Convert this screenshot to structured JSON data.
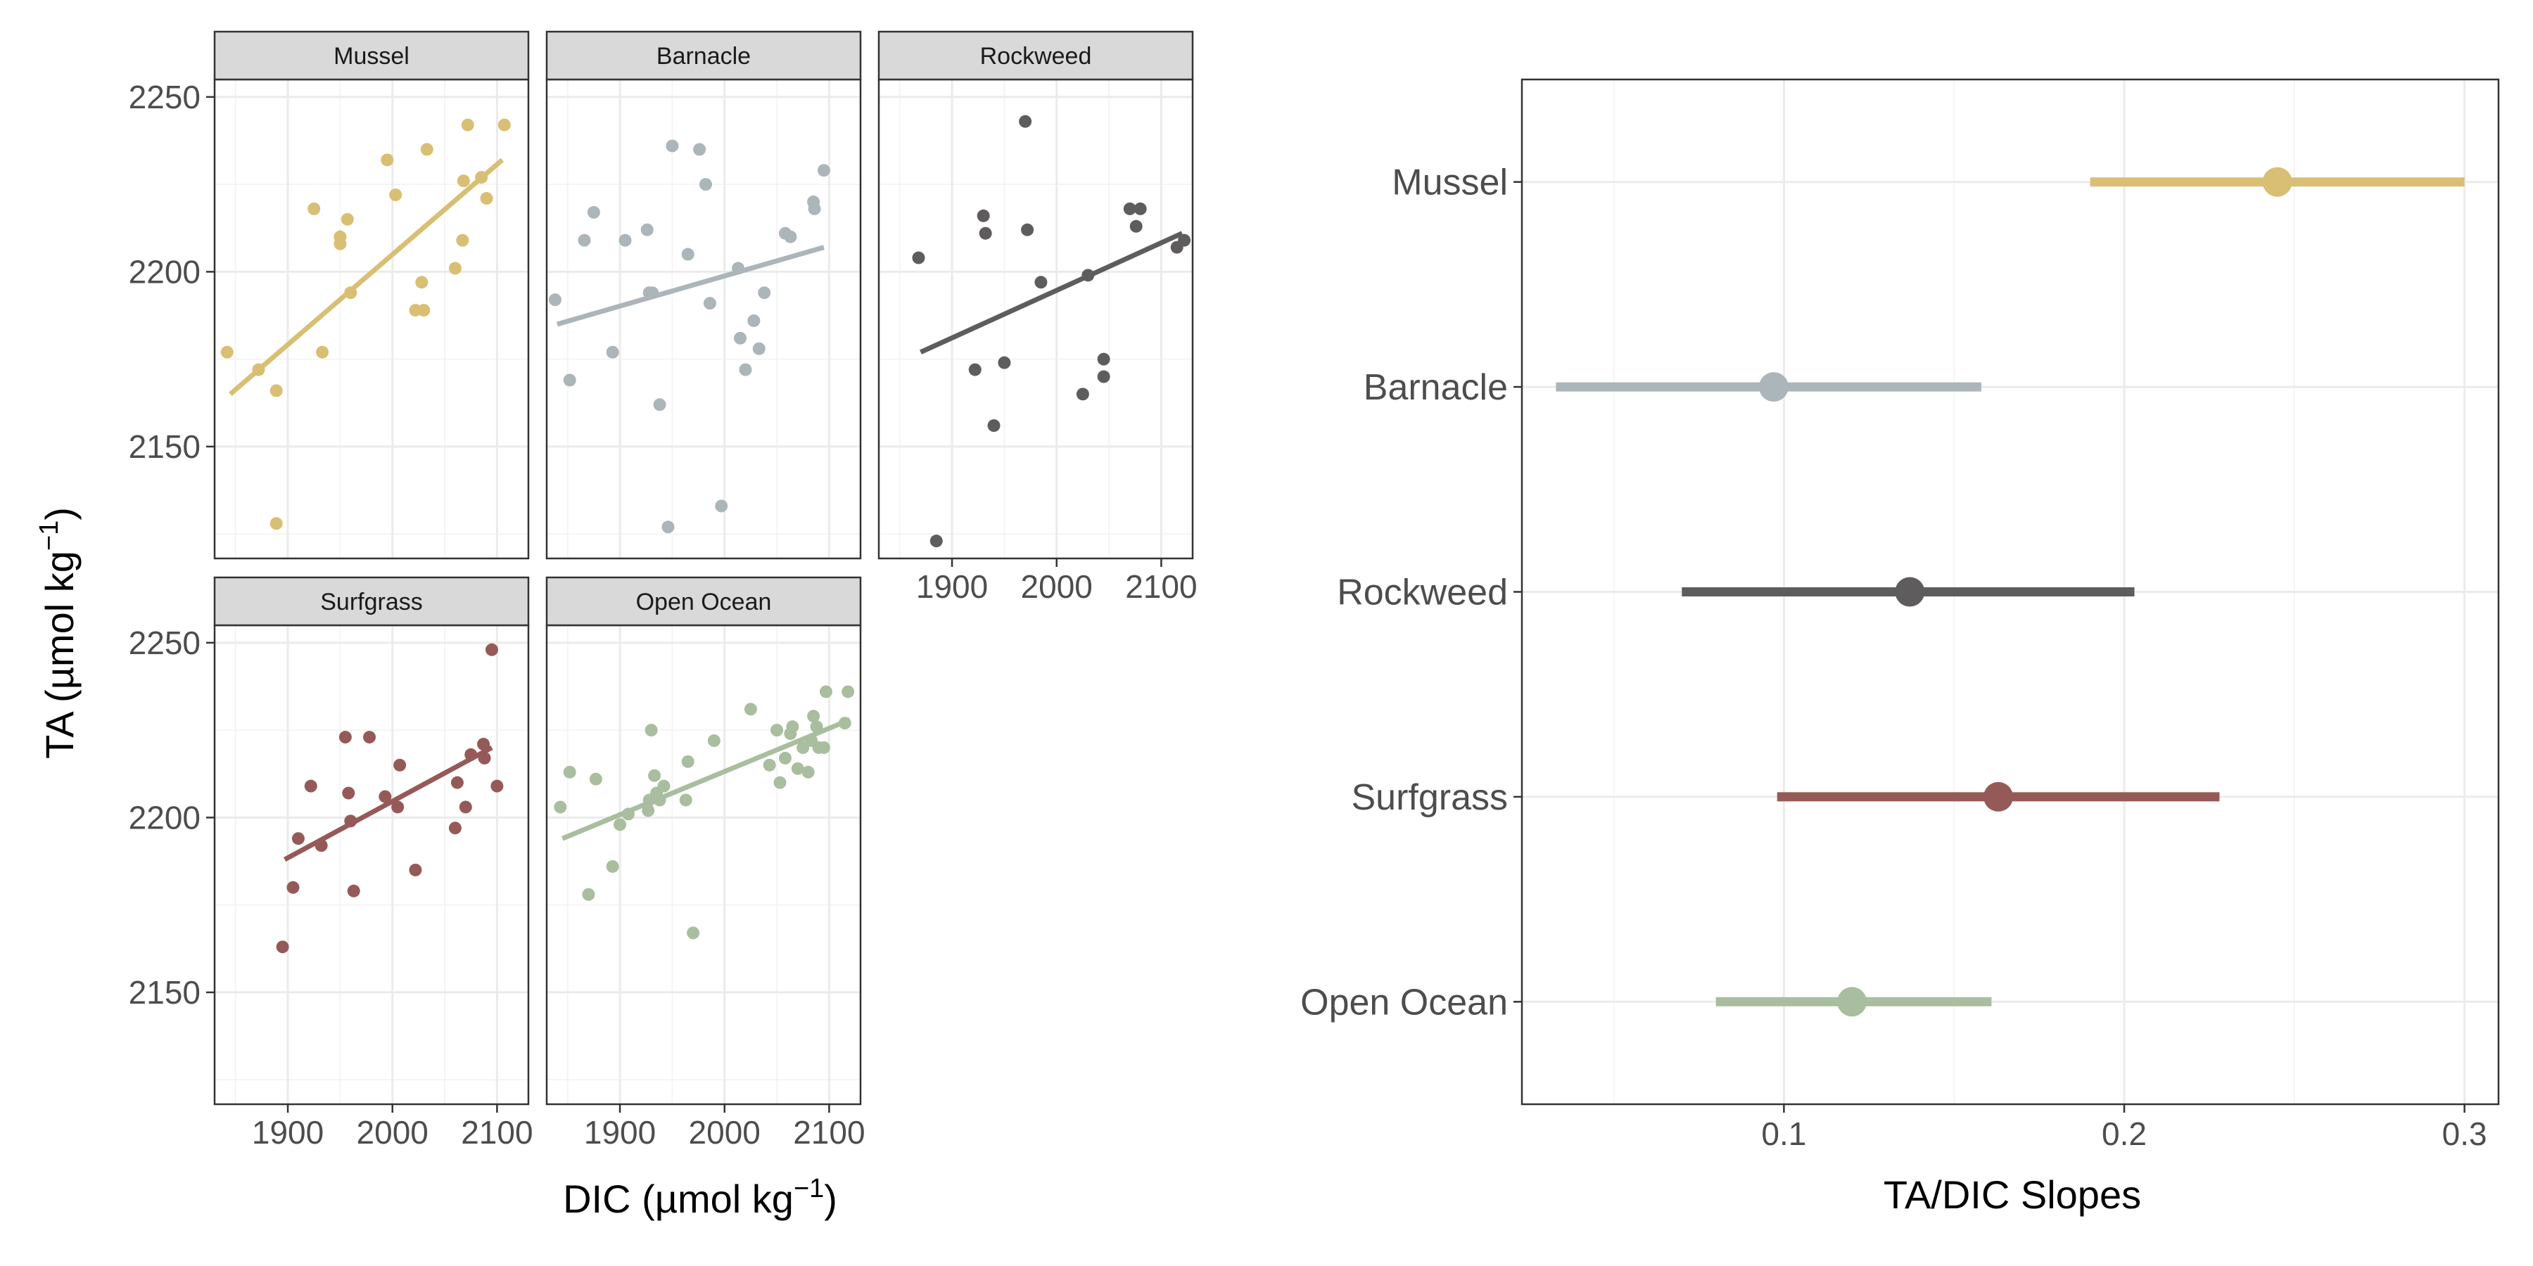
{
  "colors": {
    "Mussel": "#D9BF73",
    "Barnacle": "#ABB5BA",
    "Rockweed": "#5F5C5D",
    "Surfgrass": "#955A58",
    "Open Ocean": "#A9BE9F"
  },
  "chart_data": [
    {
      "type": "scatter",
      "layout": "facet-grid",
      "xlabel_main": "DIC (µmol kg",
      "xlabel_sup": "−1",
      "xlabel_close": ")",
      "ylabel_main": "TA (µmol kg",
      "ylabel_sup": "−1",
      "ylabel_close": ")",
      "xlim": [
        1830,
        2130
      ],
      "ylim": [
        2118,
        2255
      ],
      "x_ticks": [
        1900,
        2000,
        2100
      ],
      "y_ticks": [
        2150,
        2200,
        2250
      ],
      "grid": true,
      "facets": [
        {
          "name": "Mussel",
          "fit": [
            [
              1845,
              2165
            ],
            [
              2105,
              2232
            ]
          ],
          "points": [
            [
              1842,
              2177
            ],
            [
              1872,
              2172
            ],
            [
              1889,
              2166
            ],
            [
              1889,
              2128
            ],
            [
              1925,
              2218
            ],
            [
              1933,
              2177
            ],
            [
              1950,
              2210
            ],
            [
              1950,
              2208
            ],
            [
              1957,
              2215
            ],
            [
              1960,
              2194
            ],
            [
              1995,
              2232
            ],
            [
              2003,
              2222
            ],
            [
              2022,
              2189
            ],
            [
              2028,
              2197
            ],
            [
              2030,
              2189
            ],
            [
              2033,
              2235
            ],
            [
              2060,
              2201
            ],
            [
              2067,
              2209
            ],
            [
              2068,
              2226
            ],
            [
              2072,
              2242
            ],
            [
              2085,
              2227
            ],
            [
              2090,
              2221
            ],
            [
              2107,
              2242
            ]
          ]
        },
        {
          "name": "Barnacle",
          "fit": [
            [
              1840,
              2185
            ],
            [
              2095,
              2207
            ]
          ],
          "points": [
            [
              1838,
              2192
            ],
            [
              1852,
              2169
            ],
            [
              1866,
              2209
            ],
            [
              1875,
              2217
            ],
            [
              1893,
              2177
            ],
            [
              1905,
              2209
            ],
            [
              1926,
              2212
            ],
            [
              1928,
              2194
            ],
            [
              1931,
              2194
            ],
            [
              1938,
              2162
            ],
            [
              1946,
              2127
            ],
            [
              1950,
              2236
            ],
            [
              1965,
              2205
            ],
            [
              1976,
              2235
            ],
            [
              1982,
              2225
            ],
            [
              1986,
              2191
            ],
            [
              1997,
              2133
            ],
            [
              2013,
              2201
            ],
            [
              2015,
              2181
            ],
            [
              2020,
              2172
            ],
            [
              2028,
              2186
            ],
            [
              2033,
              2178
            ],
            [
              2038,
              2194
            ],
            [
              2058,
              2211
            ],
            [
              2063,
              2210
            ],
            [
              2085,
              2220
            ],
            [
              2086,
              2218
            ],
            [
              2095,
              2229
            ]
          ]
        },
        {
          "name": "Rockweed",
          "fit": [
            [
              1870,
              2177
            ],
            [
              2120,
              2211
            ]
          ],
          "points": [
            [
              1868,
              2204
            ],
            [
              1885,
              2123
            ],
            [
              1922,
              2172
            ],
            [
              1930,
              2216
            ],
            [
              1932,
              2211
            ],
            [
              1940,
              2156
            ],
            [
              1950,
              2174
            ],
            [
              1970,
              2243
            ],
            [
              1972,
              2212
            ],
            [
              1985,
              2197
            ],
            [
              2025,
              2165
            ],
            [
              2030,
              2199
            ],
            [
              2045,
              2175
            ],
            [
              2045,
              2170
            ],
            [
              2070,
              2218
            ],
            [
              2076,
              2213
            ],
            [
              2080,
              2218
            ],
            [
              2115,
              2207
            ],
            [
              2122,
              2209
            ]
          ]
        },
        {
          "name": "Surfgrass",
          "fit": [
            [
              1897,
              2188
            ],
            [
              2095,
              2220
            ]
          ],
          "points": [
            [
              1895,
              2163
            ],
            [
              1905,
              2180
            ],
            [
              1910,
              2194
            ],
            [
              1922,
              2209
            ],
            [
              1932,
              2192
            ],
            [
              1955,
              2223
            ],
            [
              1958,
              2207
            ],
            [
              1960,
              2199
            ],
            [
              1963,
              2179
            ],
            [
              1978,
              2223
            ],
            [
              1993,
              2206
            ],
            [
              2005,
              2203
            ],
            [
              2007,
              2215
            ],
            [
              2022,
              2185
            ],
            [
              2060,
              2197
            ],
            [
              2062,
              2210
            ],
            [
              2070,
              2203
            ],
            [
              2075,
              2218
            ],
            [
              2087,
              2221
            ],
            [
              2088,
              2217
            ],
            [
              2095,
              2248
            ],
            [
              2100,
              2209
            ]
          ]
        },
        {
          "name": "Open Ocean",
          "fit": [
            [
              1845,
              2194
            ],
            [
              2120,
              2228
            ]
          ],
          "points": [
            [
              1843,
              2203
            ],
            [
              1852,
              2213
            ],
            [
              1870,
              2178
            ],
            [
              1877,
              2211
            ],
            [
              1893,
              2186
            ],
            [
              1900,
              2198
            ],
            [
              1908,
              2201
            ],
            [
              1927,
              2202
            ],
            [
              1928,
              2205
            ],
            [
              1930,
              2225
            ],
            [
              1933,
              2212
            ],
            [
              1935,
              2207
            ],
            [
              1938,
              2205
            ],
            [
              1942,
              2209
            ],
            [
              1963,
              2205
            ],
            [
              1965,
              2216
            ],
            [
              1970,
              2167
            ],
            [
              1990,
              2222
            ],
            [
              2025,
              2231
            ],
            [
              2043,
              2215
            ],
            [
              2050,
              2225
            ],
            [
              2053,
              2210
            ],
            [
              2058,
              2217
            ],
            [
              2063,
              2224
            ],
            [
              2065,
              2226
            ],
            [
              2070,
              2214
            ],
            [
              2075,
              2220
            ],
            [
              2080,
              2213
            ],
            [
              2083,
              2222
            ],
            [
              2085,
              2229
            ],
            [
              2088,
              2226
            ],
            [
              2090,
              2220
            ],
            [
              2095,
              2220
            ],
            [
              2097,
              2236
            ],
            [
              2115,
              2227
            ],
            [
              2118,
              2236
            ]
          ]
        }
      ]
    },
    {
      "type": "scatter",
      "subtype": "pointrange",
      "xlabel": "TA/DIC Slopes",
      "ylabel": "",
      "xlim": [
        0.023,
        0.31
      ],
      "x_ticks": [
        0.1,
        0.2,
        0.3
      ],
      "x_tick_labels": [
        "0.1",
        "0.2",
        "0.3"
      ],
      "grid": true,
      "categories": [
        "Mussel",
        "Barnacle",
        "Rockweed",
        "Surfgrass",
        "Open Ocean"
      ],
      "estimates": [
        0.245,
        0.097,
        0.137,
        0.163,
        0.12
      ],
      "lower": [
        0.19,
        0.033,
        0.07,
        0.098,
        0.08
      ],
      "upper": [
        0.3,
        0.158,
        0.203,
        0.228,
        0.161
      ]
    }
  ]
}
